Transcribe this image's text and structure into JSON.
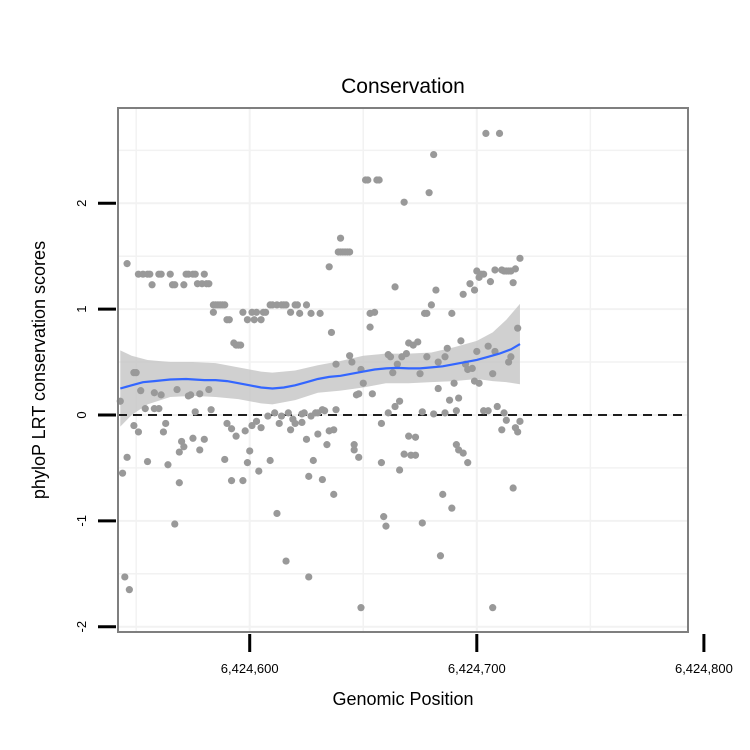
{
  "chart_data": {
    "type": "scatter",
    "title": "Conservation",
    "xlabel": "Genomic Position",
    "ylabel": "phyloP LRT conservation scores",
    "xlim": [
      6424542,
      6424793
    ],
    "ylim": [
      -2.05,
      2.9
    ],
    "x_ticks": [
      6424600,
      6424700,
      6424800
    ],
    "x_tick_labels": [
      "6,424,600",
      "6,424,700",
      "6,424,800"
    ],
    "y_ticks": [
      -2,
      -1,
      0,
      1,
      2
    ],
    "y_tick_labels": [
      "-2",
      "-1",
      "0",
      "1",
      "2"
    ],
    "grid": true,
    "reference_line": {
      "y": 0,
      "style": "dashed"
    },
    "colors": {
      "points": "#999999",
      "smooth_line": "#3366ff",
      "confidence_band": "#c8c8c8",
      "panel_border": "#7f7f7f",
      "grid": "#f2f2f2"
    },
    "points": [
      {
        "x": 6424543,
        "y": 0.13
      },
      {
        "x": 6424544,
        "y": -0.55
      },
      {
        "x": 6424545,
        "y": -1.53
      },
      {
        "x": 6424546,
        "y": -0.4
      },
      {
        "x": 6424546,
        "y": 1.43
      },
      {
        "x": 6424547,
        "y": -1.65
      },
      {
        "x": 6424549,
        "y": 0.4
      },
      {
        "x": 6424549,
        "y": -0.1
      },
      {
        "x": 6424550,
        "y": 0.4
      },
      {
        "x": 6424551,
        "y": -0.16
      },
      {
        "x": 6424551,
        "y": 1.33
      },
      {
        "x": 6424552,
        "y": 0.23
      },
      {
        "x": 6424553,
        "y": 1.33
      },
      {
        "x": 6424554,
        "y": 0.06
      },
      {
        "x": 6424555,
        "y": -0.44
      },
      {
        "x": 6424555,
        "y": 1.33
      },
      {
        "x": 6424556,
        "y": 1.33
      },
      {
        "x": 6424557,
        "y": 1.23
      },
      {
        "x": 6424558,
        "y": 0.21
      },
      {
        "x": 6424558,
        "y": 0.06
      },
      {
        "x": 6424560,
        "y": 1.33
      },
      {
        "x": 6424560,
        "y": 0.06
      },
      {
        "x": 6424561,
        "y": 1.33
      },
      {
        "x": 6424561,
        "y": 0.19
      },
      {
        "x": 6424562,
        "y": -0.16
      },
      {
        "x": 6424563,
        "y": -0.08
      },
      {
        "x": 6424564,
        "y": -0.47
      },
      {
        "x": 6424565,
        "y": 1.33
      },
      {
        "x": 6424566,
        "y": 1.23
      },
      {
        "x": 6424567,
        "y": -1.03
      },
      {
        "x": 6424567,
        "y": 1.23
      },
      {
        "x": 6424568,
        "y": 0.24
      },
      {
        "x": 6424569,
        "y": -0.64
      },
      {
        "x": 6424569,
        "y": -0.35
      },
      {
        "x": 6424570,
        "y": -0.25
      },
      {
        "x": 6424571,
        "y": -0.3
      },
      {
        "x": 6424571,
        "y": 1.23
      },
      {
        "x": 6424572,
        "y": 1.33
      },
      {
        "x": 6424573,
        "y": 0.18
      },
      {
        "x": 6424573,
        "y": 1.33
      },
      {
        "x": 6424574,
        "y": 0.19
      },
      {
        "x": 6424575,
        "y": 1.33
      },
      {
        "x": 6424575,
        "y": -0.22
      },
      {
        "x": 6424576,
        "y": 0.03
      },
      {
        "x": 6424576,
        "y": 1.33
      },
      {
        "x": 6424577,
        "y": 1.24
      },
      {
        "x": 6424578,
        "y": 0.2
      },
      {
        "x": 6424578,
        "y": -0.33
      },
      {
        "x": 6424579,
        "y": 1.24
      },
      {
        "x": 6424580,
        "y": 1.33
      },
      {
        "x": 6424580,
        "y": -0.23
      },
      {
        "x": 6424581,
        "y": 1.24
      },
      {
        "x": 6424582,
        "y": 1.24
      },
      {
        "x": 6424582,
        "y": 0.24
      },
      {
        "x": 6424583,
        "y": 0.05
      },
      {
        "x": 6424584,
        "y": 1.04
      },
      {
        "x": 6424584,
        "y": 0.97
      },
      {
        "x": 6424585,
        "y": 1.04
      },
      {
        "x": 6424586,
        "y": 1.04
      },
      {
        "x": 6424587,
        "y": 1.04
      },
      {
        "x": 6424588,
        "y": 1.04
      },
      {
        "x": 6424589,
        "y": 1.04
      },
      {
        "x": 6424589,
        "y": -0.42
      },
      {
        "x": 6424590,
        "y": 0.9
      },
      {
        "x": 6424590,
        "y": -0.08
      },
      {
        "x": 6424591,
        "y": 0.9
      },
      {
        "x": 6424592,
        "y": -0.62
      },
      {
        "x": 6424592,
        "y": -0.13
      },
      {
        "x": 6424593,
        "y": 0.68
      },
      {
        "x": 6424594,
        "y": 0.66
      },
      {
        "x": 6424594,
        "y": -0.2
      },
      {
        "x": 6424595,
        "y": 0.66
      },
      {
        "x": 6424596,
        "y": 0.66
      },
      {
        "x": 6424597,
        "y": -0.62
      },
      {
        "x": 6424597,
        "y": 0.97
      },
      {
        "x": 6424598,
        "y": -0.15
      },
      {
        "x": 6424599,
        "y": -0.45
      },
      {
        "x": 6424599,
        "y": 0.9
      },
      {
        "x": 6424600,
        "y": -0.34
      },
      {
        "x": 6424601,
        "y": 0.97
      },
      {
        "x": 6424601,
        "y": -0.1
      },
      {
        "x": 6424602,
        "y": 0.9
      },
      {
        "x": 6424603,
        "y": -0.06
      },
      {
        "x": 6424603,
        "y": 0.97
      },
      {
        "x": 6424604,
        "y": -0.53
      },
      {
        "x": 6424605,
        "y": 0.9
      },
      {
        "x": 6424605,
        "y": -0.12
      },
      {
        "x": 6424606,
        "y": 0.97
      },
      {
        "x": 6424607,
        "y": 0.97
      },
      {
        "x": 6424608,
        "y": -0.01
      },
      {
        "x": 6424609,
        "y": 1.04
      },
      {
        "x": 6424609,
        "y": -0.43
      },
      {
        "x": 6424610,
        "y": 1.04
      },
      {
        "x": 6424611,
        "y": 0.02
      },
      {
        "x": 6424612,
        "y": -0.93
      },
      {
        "x": 6424612,
        "y": 1.04
      },
      {
        "x": 6424613,
        "y": -0.08
      },
      {
        "x": 6424614,
        "y": -0.01
      },
      {
        "x": 6424614,
        "y": 1.04
      },
      {
        "x": 6424615,
        "y": 1.04
      },
      {
        "x": 6424616,
        "y": -1.38
      },
      {
        "x": 6424616,
        "y": 1.04
      },
      {
        "x": 6424617,
        "y": 0.02
      },
      {
        "x": 6424618,
        "y": -0.14
      },
      {
        "x": 6424618,
        "y": 0.97
      },
      {
        "x": 6424619,
        "y": -0.04
      },
      {
        "x": 6424620,
        "y": -0.08
      },
      {
        "x": 6424620,
        "y": 1.04
      },
      {
        "x": 6424621,
        "y": 1.04
      },
      {
        "x": 6424622,
        "y": 0.96
      },
      {
        "x": 6424623,
        "y": 0.01
      },
      {
        "x": 6424623,
        "y": -0.07
      },
      {
        "x": 6424624,
        "y": 0.02
      },
      {
        "x": 6424625,
        "y": -0.23
      },
      {
        "x": 6424625,
        "y": 1.04
      },
      {
        "x": 6424626,
        "y": -1.53
      },
      {
        "x": 6424626,
        "y": -0.58
      },
      {
        "x": 6424627,
        "y": -0.01
      },
      {
        "x": 6424627,
        "y": 0.96
      },
      {
        "x": 6424628,
        "y": -0.43
      },
      {
        "x": 6424629,
        "y": 0.02
      },
      {
        "x": 6424630,
        "y": -0.18
      },
      {
        "x": 6424630,
        "y": 0.02
      },
      {
        "x": 6424631,
        "y": 0.96
      },
      {
        "x": 6424632,
        "y": -0.61
      },
      {
        "x": 6424632,
        "y": 0.05
      },
      {
        "x": 6424633,
        "y": 0.04
      },
      {
        "x": 6424634,
        "y": -0.28
      },
      {
        "x": 6424635,
        "y": 1.4
      },
      {
        "x": 6424635,
        "y": -0.15
      },
      {
        "x": 6424636,
        "y": 0.78
      },
      {
        "x": 6424637,
        "y": -0.75
      },
      {
        "x": 6424637,
        "y": -0.14
      },
      {
        "x": 6424638,
        "y": 0.05
      },
      {
        "x": 6424638,
        "y": 0.48
      },
      {
        "x": 6424639,
        "y": 1.54
      },
      {
        "x": 6424640,
        "y": 1.67
      },
      {
        "x": 6424640,
        "y": 1.54
      },
      {
        "x": 6424641,
        "y": 1.54
      },
      {
        "x": 6424642,
        "y": 1.54
      },
      {
        "x": 6424643,
        "y": 1.54
      },
      {
        "x": 6424644,
        "y": 1.54
      },
      {
        "x": 6424644,
        "y": 0.56
      },
      {
        "x": 6424645,
        "y": 0.5
      },
      {
        "x": 6424646,
        "y": -0.33
      },
      {
        "x": 6424646,
        "y": -0.28
      },
      {
        "x": 6424647,
        "y": 0.19
      },
      {
        "x": 6424648,
        "y": 0.2
      },
      {
        "x": 6424648,
        "y": -0.4
      },
      {
        "x": 6424649,
        "y": -1.82
      },
      {
        "x": 6424649,
        "y": 0.43
      },
      {
        "x": 6424650,
        "y": 0.3
      },
      {
        "x": 6424651,
        "y": 2.22
      },
      {
        "x": 6424652,
        "y": 2.22
      },
      {
        "x": 6424653,
        "y": 0.96
      },
      {
        "x": 6424653,
        "y": 0.83
      },
      {
        "x": 6424654,
        "y": 0.2
      },
      {
        "x": 6424655,
        "y": 0.97
      },
      {
        "x": 6424656,
        "y": 2.22
      },
      {
        "x": 6424657,
        "y": 2.22
      },
      {
        "x": 6424658,
        "y": -0.08
      },
      {
        "x": 6424658,
        "y": -0.45
      },
      {
        "x": 6424659,
        "y": -0.96
      },
      {
        "x": 6424660,
        "y": -1.05
      },
      {
        "x": 6424661,
        "y": 0.57
      },
      {
        "x": 6424661,
        "y": 0.02
      },
      {
        "x": 6424662,
        "y": 0.55
      },
      {
        "x": 6424663,
        "y": 0.4
      },
      {
        "x": 6424664,
        "y": 0.08
      },
      {
        "x": 6424664,
        "y": 1.21
      },
      {
        "x": 6424665,
        "y": 0.48
      },
      {
        "x": 6424666,
        "y": 0.13
      },
      {
        "x": 6424666,
        "y": -0.52
      },
      {
        "x": 6424667,
        "y": 0.55
      },
      {
        "x": 6424668,
        "y": 2.01
      },
      {
        "x": 6424668,
        "y": -0.37
      },
      {
        "x": 6424669,
        "y": 0.58
      },
      {
        "x": 6424670,
        "y": -0.2
      },
      {
        "x": 6424670,
        "y": 0.68
      },
      {
        "x": 6424671,
        "y": -0.38
      },
      {
        "x": 6424672,
        "y": 0.66
      },
      {
        "x": 6424673,
        "y": -0.38
      },
      {
        "x": 6424673,
        "y": -0.21
      },
      {
        "x": 6424674,
        "y": 0.69
      },
      {
        "x": 6424675,
        "y": 0.39
      },
      {
        "x": 6424676,
        "y": -1.02
      },
      {
        "x": 6424676,
        "y": 0.03
      },
      {
        "x": 6424677,
        "y": 0.96
      },
      {
        "x": 6424678,
        "y": 0.96
      },
      {
        "x": 6424678,
        "y": 0.55
      },
      {
        "x": 6424679,
        "y": 2.1
      },
      {
        "x": 6424680,
        "y": 1.04
      },
      {
        "x": 6424681,
        "y": 2.46
      },
      {
        "x": 6424681,
        "y": 0.01
      },
      {
        "x": 6424682,
        "y": 1.18
      },
      {
        "x": 6424683,
        "y": 0.25
      },
      {
        "x": 6424683,
        "y": 0.5
      },
      {
        "x": 6424684,
        "y": -1.33
      },
      {
        "x": 6424685,
        "y": -0.75
      },
      {
        "x": 6424686,
        "y": 0.55
      },
      {
        "x": 6424686,
        "y": 0.02
      },
      {
        "x": 6424687,
        "y": 0.63
      },
      {
        "x": 6424688,
        "y": 0.14
      },
      {
        "x": 6424689,
        "y": -0.88
      },
      {
        "x": 6424689,
        "y": 0.96
      },
      {
        "x": 6424690,
        "y": 0.3
      },
      {
        "x": 6424691,
        "y": -0.28
      },
      {
        "x": 6424691,
        "y": 0.04
      },
      {
        "x": 6424692,
        "y": -0.33
      },
      {
        "x": 6424692,
        "y": 0.16
      },
      {
        "x": 6424693,
        "y": 0.7
      },
      {
        "x": 6424694,
        "y": 1.14
      },
      {
        "x": 6424694,
        "y": -0.36
      },
      {
        "x": 6424695,
        "y": 0.48
      },
      {
        "x": 6424696,
        "y": -0.45
      },
      {
        "x": 6424696,
        "y": 0.43
      },
      {
        "x": 6424697,
        "y": 1.24
      },
      {
        "x": 6424698,
        "y": 0.44
      },
      {
        "x": 6424699,
        "y": 0.32
      },
      {
        "x": 6424699,
        "y": 1.18
      },
      {
        "x": 6424700,
        "y": 0.6
      },
      {
        "x": 6424700,
        "y": 1.36
      },
      {
        "x": 6424701,
        "y": 0.3
      },
      {
        "x": 6424701,
        "y": 1.3
      },
      {
        "x": 6424702,
        "y": 1.33
      },
      {
        "x": 6424703,
        "y": 0.04
      },
      {
        "x": 6424703,
        "y": 1.33
      },
      {
        "x": 6424704,
        "y": 2.66
      },
      {
        "x": 6424705,
        "y": 0.04
      },
      {
        "x": 6424705,
        "y": 0.65
      },
      {
        "x": 6424706,
        "y": 1.26
      },
      {
        "x": 6424707,
        "y": -1.82
      },
      {
        "x": 6424707,
        "y": 0.39
      },
      {
        "x": 6424708,
        "y": 1.37
      },
      {
        "x": 6424708,
        "y": 0.6
      },
      {
        "x": 6424709,
        "y": 0.08
      },
      {
        "x": 6424710,
        "y": 2.66
      },
      {
        "x": 6424711,
        "y": 1.37
      },
      {
        "x": 6424711,
        "y": -0.14
      },
      {
        "x": 6424712,
        "y": 0.02
      },
      {
        "x": 6424712,
        "y": 1.36
      },
      {
        "x": 6424713,
        "y": 1.36
      },
      {
        "x": 6424713,
        "y": -0.05
      },
      {
        "x": 6424714,
        "y": 1.36
      },
      {
        "x": 6424714,
        "y": 0.5
      },
      {
        "x": 6424715,
        "y": 0.55
      },
      {
        "x": 6424715,
        "y": 1.36
      },
      {
        "x": 6424716,
        "y": -0.69
      },
      {
        "x": 6424716,
        "y": 1.25
      },
      {
        "x": 6424717,
        "y": -0.12
      },
      {
        "x": 6424717,
        "y": 1.38
      },
      {
        "x": 6424718,
        "y": 0.82
      },
      {
        "x": 6424718,
        "y": -0.16
      },
      {
        "x": 6424719,
        "y": 1.48
      },
      {
        "x": 6424719,
        "y": -0.06
      }
    ],
    "smooth_line": [
      {
        "x": 6424543,
        "y": 0.25
      },
      {
        "x": 6424548,
        "y": 0.28
      },
      {
        "x": 6424553,
        "y": 0.31
      },
      {
        "x": 6424558,
        "y": 0.32
      },
      {
        "x": 6424565,
        "y": 0.335
      },
      {
        "x": 6424572,
        "y": 0.34
      },
      {
        "x": 6424580,
        "y": 0.33
      },
      {
        "x": 6424585,
        "y": 0.33
      },
      {
        "x": 6424590,
        "y": 0.32
      },
      {
        "x": 6424595,
        "y": 0.3
      },
      {
        "x": 6424600,
        "y": 0.28
      },
      {
        "x": 6424605,
        "y": 0.26
      },
      {
        "x": 6424610,
        "y": 0.25
      },
      {
        "x": 6424615,
        "y": 0.26
      },
      {
        "x": 6424620,
        "y": 0.28
      },
      {
        "x": 6424625,
        "y": 0.31
      },
      {
        "x": 6424630,
        "y": 0.34
      },
      {
        "x": 6424635,
        "y": 0.36
      },
      {
        "x": 6424640,
        "y": 0.37
      },
      {
        "x": 6424645,
        "y": 0.39
      },
      {
        "x": 6424650,
        "y": 0.41
      },
      {
        "x": 6424655,
        "y": 0.43
      },
      {
        "x": 6424660,
        "y": 0.44
      },
      {
        "x": 6424665,
        "y": 0.445
      },
      {
        "x": 6424670,
        "y": 0.44
      },
      {
        "x": 6424675,
        "y": 0.44
      },
      {
        "x": 6424680,
        "y": 0.45
      },
      {
        "x": 6424685,
        "y": 0.46
      },
      {
        "x": 6424690,
        "y": 0.48
      },
      {
        "x": 6424695,
        "y": 0.5
      },
      {
        "x": 6424700,
        "y": 0.52
      },
      {
        "x": 6424705,
        "y": 0.55
      },
      {
        "x": 6424710,
        "y": 0.58
      },
      {
        "x": 6424715,
        "y": 0.62
      },
      {
        "x": 6424719,
        "y": 0.67
      }
    ],
    "band_upper": [
      {
        "x": 6424543,
        "y": 0.61
      },
      {
        "x": 6424548,
        "y": 0.56
      },
      {
        "x": 6424555,
        "y": 0.52
      },
      {
        "x": 6424565,
        "y": 0.5
      },
      {
        "x": 6424575,
        "y": 0.5
      },
      {
        "x": 6424585,
        "y": 0.49
      },
      {
        "x": 6424595,
        "y": 0.45
      },
      {
        "x": 6424605,
        "y": 0.41
      },
      {
        "x": 6424610,
        "y": 0.4
      },
      {
        "x": 6424620,
        "y": 0.42
      },
      {
        "x": 6424630,
        "y": 0.47
      },
      {
        "x": 6424640,
        "y": 0.51
      },
      {
        "x": 6424650,
        "y": 0.56
      },
      {
        "x": 6424660,
        "y": 0.58
      },
      {
        "x": 6424670,
        "y": 0.58
      },
      {
        "x": 6424680,
        "y": 0.59
      },
      {
        "x": 6424690,
        "y": 0.64
      },
      {
        "x": 6424700,
        "y": 0.7
      },
      {
        "x": 6424707,
        "y": 0.78
      },
      {
        "x": 6424713,
        "y": 0.9
      },
      {
        "x": 6424719,
        "y": 1.05
      }
    ],
    "band_lower": [
      {
        "x": 6424543,
        "y": -0.11
      },
      {
        "x": 6424548,
        "y": 0.0
      },
      {
        "x": 6424555,
        "y": 0.1
      },
      {
        "x": 6424565,
        "y": 0.17
      },
      {
        "x": 6424575,
        "y": 0.18
      },
      {
        "x": 6424585,
        "y": 0.17
      },
      {
        "x": 6424595,
        "y": 0.15
      },
      {
        "x": 6424605,
        "y": 0.11
      },
      {
        "x": 6424610,
        "y": 0.1
      },
      {
        "x": 6424620,
        "y": 0.14
      },
      {
        "x": 6424630,
        "y": 0.21
      },
      {
        "x": 6424640,
        "y": 0.23
      },
      {
        "x": 6424650,
        "y": 0.26
      },
      {
        "x": 6424660,
        "y": 0.3
      },
      {
        "x": 6424670,
        "y": 0.3
      },
      {
        "x": 6424680,
        "y": 0.31
      },
      {
        "x": 6424690,
        "y": 0.32
      },
      {
        "x": 6424700,
        "y": 0.34
      },
      {
        "x": 6424707,
        "y": 0.32
      },
      {
        "x": 6424713,
        "y": 0.31
      },
      {
        "x": 6424719,
        "y": 0.29
      }
    ]
  }
}
